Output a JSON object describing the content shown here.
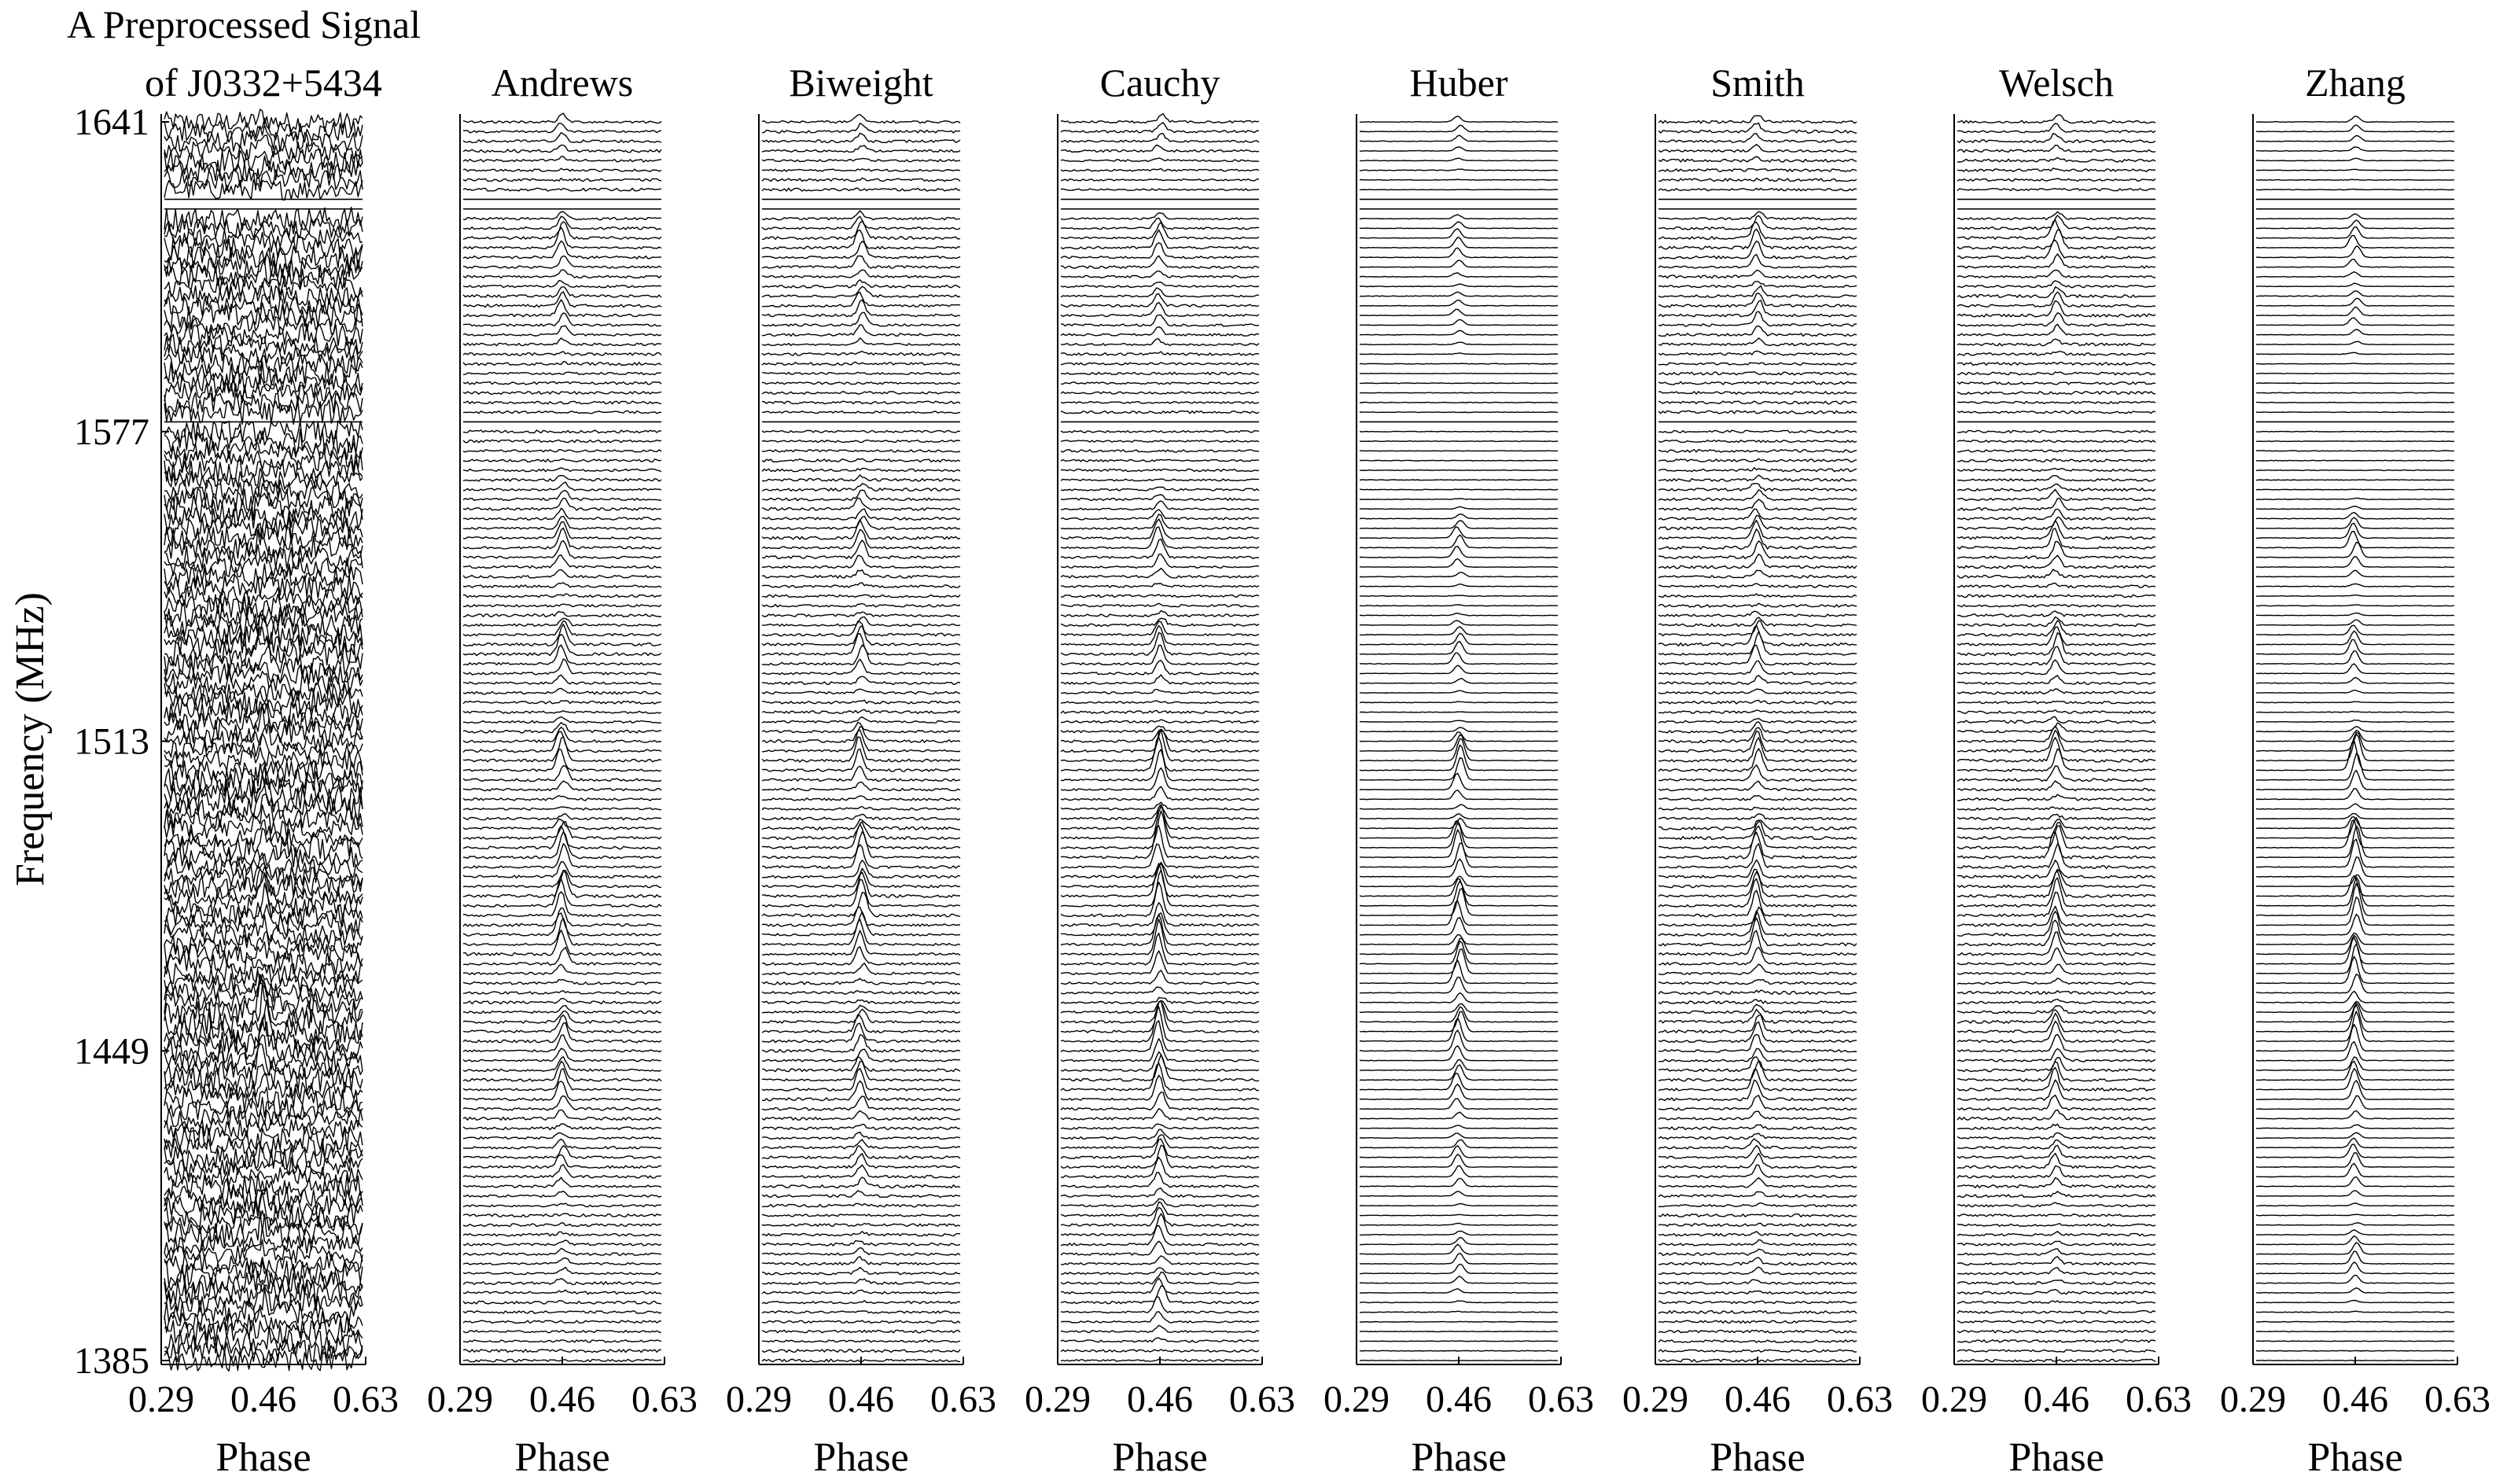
{
  "chart_data": {
    "type": "line",
    "title_lines": [
      "A Preprocessed Signal",
      "of J0332+5434"
    ],
    "ylabel": "Frequency (MHz)",
    "xlabel": "Phase",
    "yticks": [
      1641,
      1577,
      1513,
      1449,
      1385
    ],
    "ylim": [
      1385,
      1641
    ],
    "xticks": [
      "0.29",
      "0.46",
      "0.63"
    ],
    "xlim": [
      0.29,
      0.63
    ],
    "pulse_phase": 0.46,
    "channel_spacing_mhz": 2,
    "rfi_flagged_channels_mhz": [
      1625,
      1623,
      1579
    ],
    "grid": false,
    "legend": "none",
    "panels": [
      {
        "name": "",
        "noise": 0.6,
        "pulse": [
          [
            1637,
            0.5
          ],
          [
            1617,
            0.6
          ],
          [
            1609,
            0.5
          ],
          [
            1563,
            0.4
          ],
          [
            1553,
            0.6
          ],
          [
            1531,
            0.8
          ],
          [
            1515,
            0.9
          ],
          [
            1497,
            1.3
          ],
          [
            1479,
            1.4
          ],
          [
            1455,
            1.5
          ],
          [
            1447,
            1.4
          ],
          [
            1413,
            0.8
          ],
          [
            1395,
            0.6
          ]
        ]
      },
      {
        "name": "Andrews",
        "noise": 0.07,
        "pulse": [
          [
            1639,
            0.4
          ],
          [
            1615,
            0.9
          ],
          [
            1601,
            0.7
          ],
          [
            1561,
            0.5
          ],
          [
            1553,
            0.9
          ],
          [
            1531,
            1.0
          ],
          [
            1509,
            1.1
          ],
          [
            1489,
            1.2
          ],
          [
            1479,
            1.3
          ],
          [
            1471,
            1.2
          ],
          [
            1451,
            0.9
          ],
          [
            1441,
            1.0
          ],
          [
            1425,
            0.6
          ],
          [
            1405,
            0.3
          ]
        ]
      },
      {
        "name": "Biweight",
        "noise": 0.07,
        "pulse": [
          [
            1639,
            0.4
          ],
          [
            1615,
            0.9
          ],
          [
            1601,
            0.7
          ],
          [
            1561,
            0.5
          ],
          [
            1553,
            0.9
          ],
          [
            1531,
            1.0
          ],
          [
            1509,
            1.1
          ],
          [
            1489,
            1.2
          ],
          [
            1479,
            1.3
          ],
          [
            1471,
            1.2
          ],
          [
            1451,
            0.9
          ],
          [
            1441,
            1.0
          ],
          [
            1425,
            0.6
          ],
          [
            1405,
            0.3
          ]
        ]
      },
      {
        "name": "Cauchy",
        "noise": 0.06,
        "pulse": [
          [
            1639,
            0.4
          ],
          [
            1615,
            0.8
          ],
          [
            1601,
            0.6
          ],
          [
            1559,
            0.4
          ],
          [
            1553,
            1.0
          ],
          [
            1531,
            1.0
          ],
          [
            1507,
            1.6
          ],
          [
            1491,
            1.7
          ],
          [
            1479,
            1.7
          ],
          [
            1469,
            1.6
          ],
          [
            1451,
            1.6
          ],
          [
            1441,
            1.3
          ],
          [
            1425,
            1.0
          ],
          [
            1411,
            1.0
          ],
          [
            1397,
            0.8
          ]
        ]
      },
      {
        "name": "Huber",
        "noise": 0.015,
        "pulse": [
          [
            1639,
            0.3
          ],
          [
            1615,
            0.5
          ],
          [
            1601,
            0.3
          ],
          [
            1553,
            0.6
          ],
          [
            1531,
            0.6
          ],
          [
            1507,
            1.2
          ],
          [
            1489,
            1.3
          ],
          [
            1477,
            1.3
          ],
          [
            1465,
            1.2
          ],
          [
            1451,
            1.1
          ],
          [
            1441,
            0.8
          ],
          [
            1425,
            0.6
          ],
          [
            1405,
            0.5
          ]
        ]
      },
      {
        "name": "Smith",
        "noise": 0.07,
        "pulse": [
          [
            1639,
            0.4
          ],
          [
            1615,
            0.9
          ],
          [
            1601,
            0.7
          ],
          [
            1561,
            0.5
          ],
          [
            1553,
            0.9
          ],
          [
            1531,
            1.0
          ],
          [
            1509,
            1.1
          ],
          [
            1489,
            1.2
          ],
          [
            1479,
            1.3
          ],
          [
            1471,
            1.2
          ],
          [
            1451,
            0.9
          ],
          [
            1441,
            1.0
          ],
          [
            1425,
            0.6
          ],
          [
            1405,
            0.3
          ]
        ]
      },
      {
        "name": "Welsch",
        "noise": 0.07,
        "pulse": [
          [
            1639,
            0.4
          ],
          [
            1615,
            0.9
          ],
          [
            1601,
            0.7
          ],
          [
            1561,
            0.5
          ],
          [
            1553,
            0.9
          ],
          [
            1531,
            1.0
          ],
          [
            1509,
            1.1
          ],
          [
            1489,
            1.2
          ],
          [
            1479,
            1.3
          ],
          [
            1471,
            1.2
          ],
          [
            1451,
            0.9
          ],
          [
            1441,
            1.0
          ],
          [
            1425,
            0.6
          ],
          [
            1405,
            0.3
          ]
        ]
      },
      {
        "name": "Zhang",
        "noise": 0.015,
        "pulse": [
          [
            1639,
            0.3
          ],
          [
            1615,
            0.6
          ],
          [
            1601,
            0.4
          ],
          [
            1553,
            0.8
          ],
          [
            1531,
            0.7
          ],
          [
            1507,
            1.4
          ],
          [
            1489,
            1.5
          ],
          [
            1477,
            1.5
          ],
          [
            1465,
            1.4
          ],
          [
            1451,
            1.4
          ],
          [
            1441,
            1.0
          ],
          [
            1425,
            0.7
          ],
          [
            1405,
            0.6
          ]
        ]
      }
    ]
  }
}
